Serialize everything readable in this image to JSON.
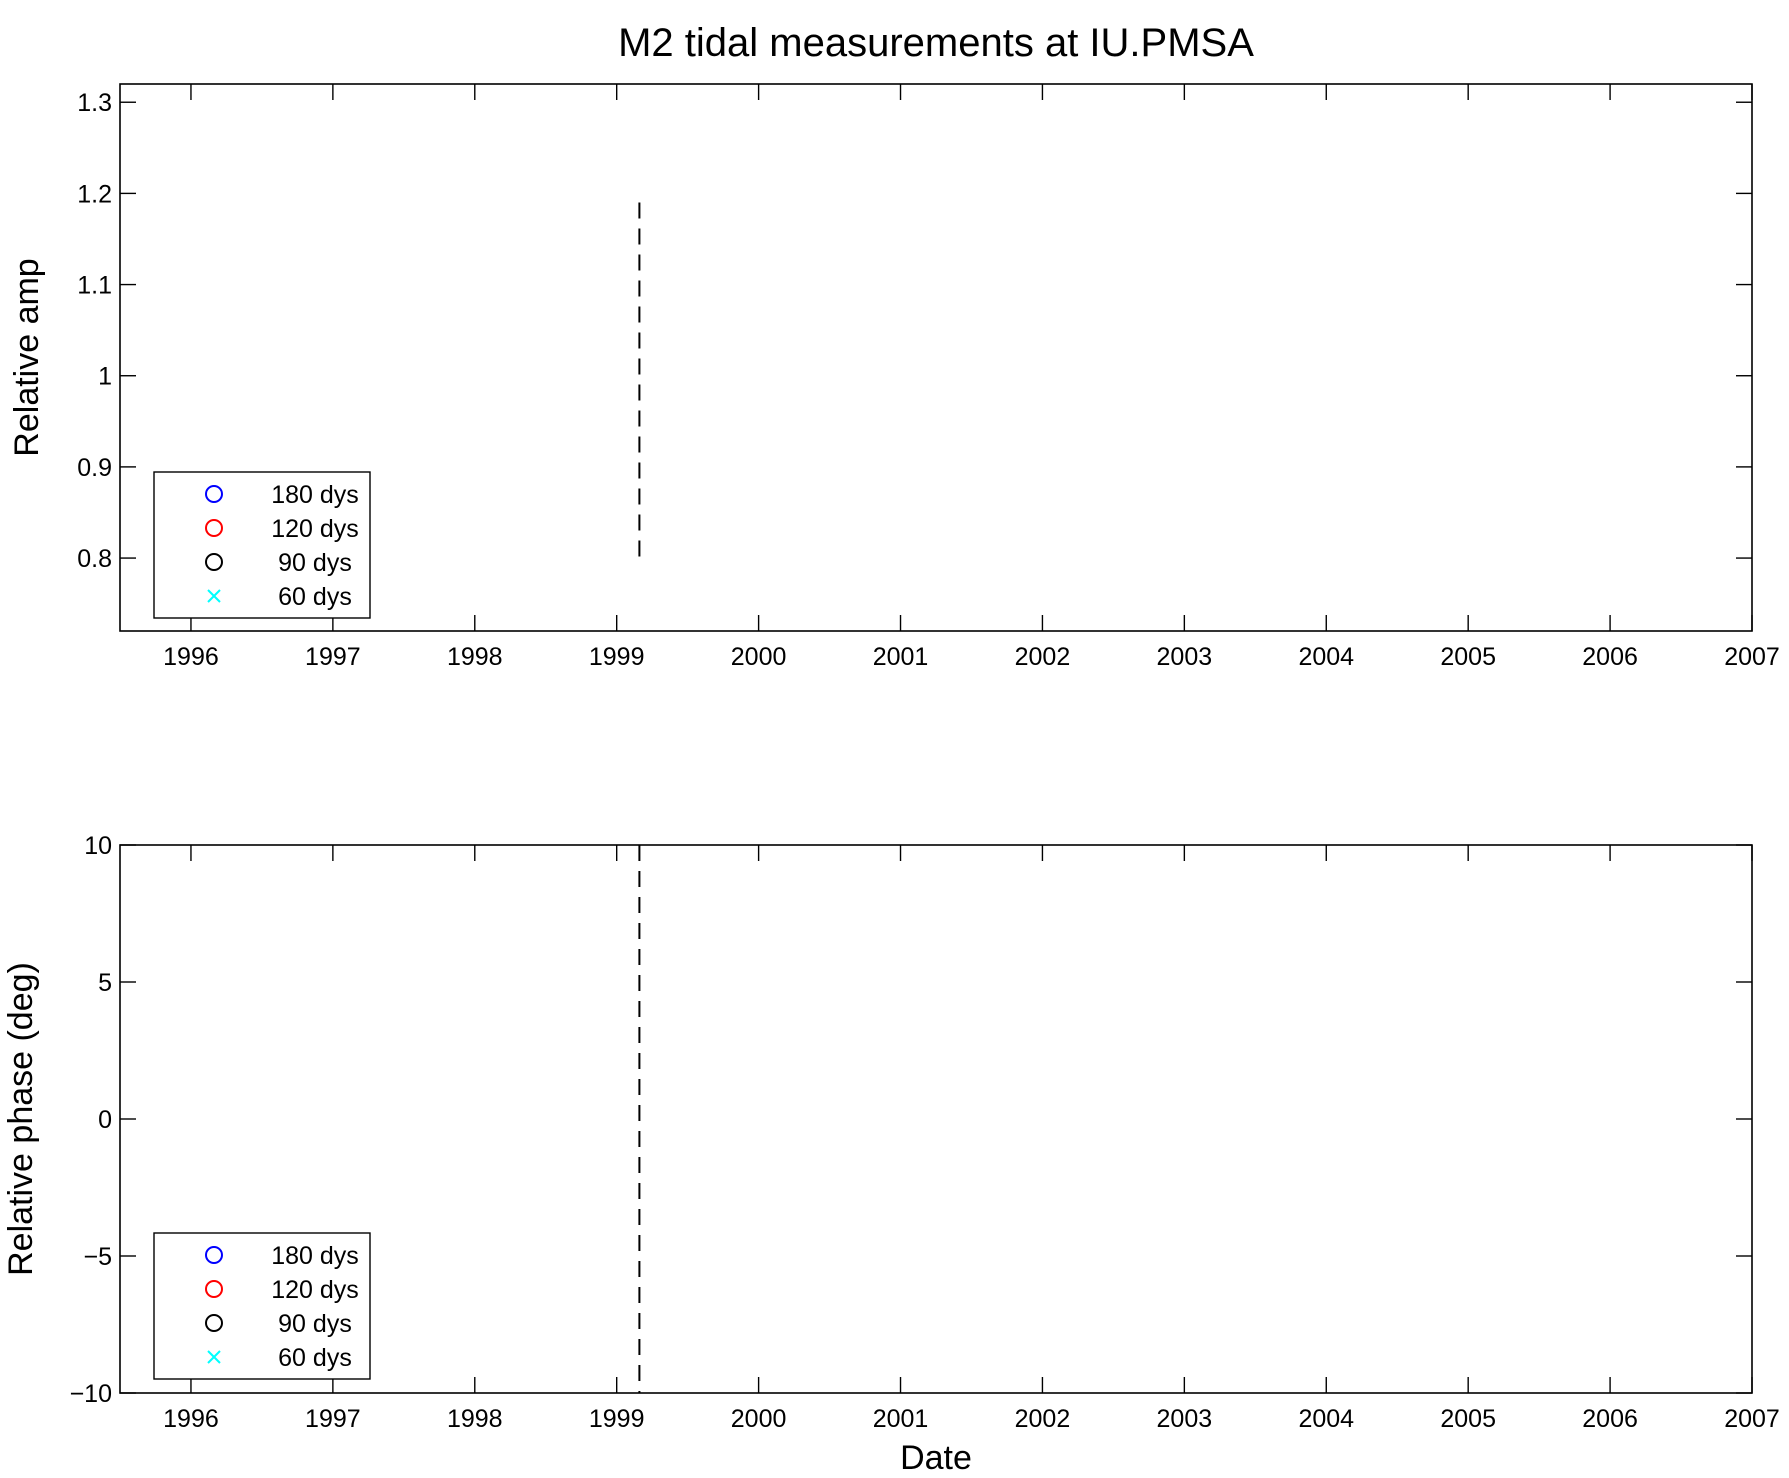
{
  "chart_data": [
    {
      "type": "scatter",
      "title": "M2 tidal measurements at IU.PMSA",
      "xlabel": "",
      "ylabel": "Relative amp",
      "xlim": [
        1995.5,
        2007
      ],
      "ylim": [
        0.72,
        1.32
      ],
      "x_ticks": [
        "1996",
        "1997",
        "1998",
        "1999",
        "2000",
        "2001",
        "2002",
        "2003",
        "2004",
        "2005",
        "2006",
        "2007"
      ],
      "y_ticks": [
        "0.8",
        "0.9",
        "1",
        "1.1",
        "1.2",
        "1.3"
      ],
      "grid": false,
      "legend": "bottom-left",
      "series": [
        {
          "name": "180 dys",
          "marker": "circle",
          "color": "#0000ff",
          "points": []
        },
        {
          "name": "120 dys",
          "marker": "circle",
          "color": "#ff0000",
          "points": []
        },
        {
          "name": "90 dys",
          "marker": "circle",
          "color": "#000000",
          "points": []
        },
        {
          "name": "60 dys",
          "marker": "x",
          "color": "#00ffff",
          "points": []
        }
      ],
      "vlines": [
        {
          "x": 1999.16,
          "y_range": [
            0.8,
            1.19
          ],
          "style": "dashed",
          "color": "#000000"
        }
      ]
    },
    {
      "type": "scatter",
      "title": "",
      "xlabel": "Date",
      "ylabel": "Relative phase (deg)",
      "xlim": [
        1995.5,
        2007
      ],
      "ylim": [
        -10,
        10
      ],
      "x_ticks": [
        "1996",
        "1997",
        "1998",
        "1999",
        "2000",
        "2001",
        "2002",
        "2003",
        "2004",
        "2005",
        "2006",
        "2007"
      ],
      "y_ticks": [
        "−10",
        "−5",
        "0",
        "5",
        "10"
      ],
      "grid": false,
      "legend": "bottom-left",
      "series": [
        {
          "name": "180 dys",
          "marker": "circle",
          "color": "#0000ff",
          "points": []
        },
        {
          "name": "120 dys",
          "marker": "circle",
          "color": "#ff0000",
          "points": []
        },
        {
          "name": "90 dys",
          "marker": "circle",
          "color": "#000000",
          "points": []
        },
        {
          "name": "60 dys",
          "marker": "x",
          "color": "#00ffff",
          "points": []
        }
      ],
      "vlines": [
        {
          "x": 1999.16,
          "y_range": [
            -10,
            10
          ],
          "style": "dashed",
          "color": "#000000"
        }
      ]
    }
  ]
}
